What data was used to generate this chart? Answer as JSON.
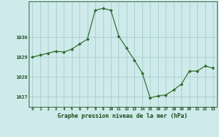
{
  "x": [
    0,
    1,
    2,
    3,
    4,
    5,
    6,
    7,
    8,
    9,
    10,
    11,
    12,
    13,
    14,
    15,
    16,
    17,
    18,
    19,
    20,
    21,
    22,
    23
  ],
  "y": [
    1029.0,
    1029.1,
    1029.2,
    1029.3,
    1029.25,
    1029.4,
    1029.65,
    1029.9,
    1031.35,
    1031.45,
    1031.35,
    1030.05,
    1029.45,
    1028.85,
    1028.2,
    1026.95,
    1027.05,
    1027.1,
    1027.35,
    1027.65,
    1028.3,
    1028.3,
    1028.55,
    1028.45
  ],
  "line_color": "#2d6a2d",
  "marker": "D",
  "marker_size": 2.2,
  "background_color": "#ceeaea",
  "grid_color": "#a8cccc",
  "xlabel": "Graphe pression niveau de la mer (hPa)",
  "xlabel_color": "#1a4a1a",
  "tick_color": "#1a4a1a",
  "ylabel_ticks": [
    1027,
    1028,
    1029,
    1030
  ],
  "ylim": [
    1026.5,
    1031.8
  ],
  "xlim": [
    -0.5,
    23.5
  ],
  "figsize": [
    3.2,
    2.0
  ],
  "dpi": 100
}
